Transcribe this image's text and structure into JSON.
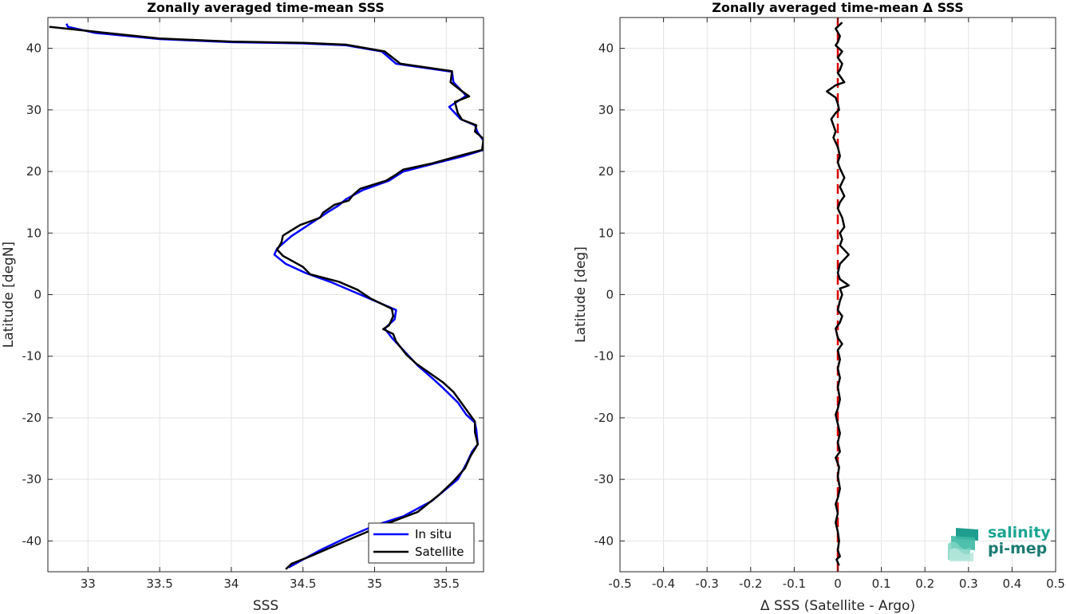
{
  "chart_data": [
    {
      "type": "line",
      "title": "Zonally averaged time-mean SSS",
      "xlabel": "SSS",
      "ylabel": "Latitude [degN]",
      "xlim": [
        32.72,
        35.76
      ],
      "ylim": [
        -45,
        45
      ],
      "xticks": [
        "33",
        "33.5",
        "34",
        "34.5",
        "35",
        "35.5"
      ],
      "yticks": [
        "40",
        "30",
        "20",
        "10",
        "0",
        "-10",
        "-20",
        "-30",
        "-40"
      ],
      "grid": true,
      "legend": {
        "placement": "bottom-right",
        "entries": [
          "In situ",
          "Satellite"
        ]
      },
      "series": [
        {
          "name": "In situ",
          "color": "#0000ff",
          "points": [
            [
              32.85,
              44
            ],
            [
              32.86,
              43.5
            ],
            [
              33.05,
              42.5
            ],
            [
              33.5,
              41.5
            ],
            [
              34.0,
              41.0
            ],
            [
              34.5,
              40.8
            ],
            [
              34.8,
              40.5
            ],
            [
              35.05,
              39.5
            ],
            [
              35.15,
              37.5
            ],
            [
              35.54,
              36.2
            ],
            [
              35.55,
              34.5
            ],
            [
              35.64,
              32.3
            ],
            [
              35.52,
              30.5
            ],
            [
              35.6,
              28.5
            ],
            [
              35.7,
              27.5
            ],
            [
              35.72,
              26.3
            ],
            [
              35.76,
              25.0
            ],
            [
              35.76,
              23.5
            ],
            [
              35.62,
              22.5
            ],
            [
              35.45,
              21.5
            ],
            [
              35.2,
              20.0
            ],
            [
              35.1,
              18.5
            ],
            [
              34.92,
              17.0
            ],
            [
              34.8,
              15.5
            ],
            [
              34.75,
              14.5
            ],
            [
              34.68,
              13.5
            ],
            [
              34.55,
              11.5
            ],
            [
              34.42,
              9.5
            ],
            [
              34.32,
              7.5
            ],
            [
              34.3,
              6.5
            ],
            [
              34.38,
              5.0
            ],
            [
              34.52,
              3.5
            ],
            [
              34.7,
              2.0
            ],
            [
              34.85,
              0.5
            ],
            [
              35.0,
              -1.0
            ],
            [
              35.15,
              -2.5
            ],
            [
              35.14,
              -4.0
            ],
            [
              35.07,
              -5.5
            ],
            [
              35.12,
              -7.0
            ],
            [
              35.2,
              -9.0
            ],
            [
              35.3,
              -11.5
            ],
            [
              35.4,
              -13.5
            ],
            [
              35.47,
              -15.0
            ],
            [
              35.58,
              -17.5
            ],
            [
              35.64,
              -19.5
            ],
            [
              35.7,
              -20.8
            ],
            [
              35.71,
              -22.0
            ],
            [
              35.72,
              -24.3
            ],
            [
              35.68,
              -25.5
            ],
            [
              35.64,
              -27.5
            ],
            [
              35.58,
              -30.0
            ],
            [
              35.4,
              -33.5
            ],
            [
              35.2,
              -36.0
            ],
            [
              35.0,
              -37.5
            ],
            [
              34.8,
              -39.5
            ],
            [
              34.62,
              -41.5
            ],
            [
              34.4,
              -44.3
            ]
          ]
        },
        {
          "name": "Satellite",
          "color": "#000000",
          "points": [
            [
              32.73,
              43.5
            ],
            [
              33.05,
              42.7
            ],
            [
              33.5,
              41.6
            ],
            [
              34.0,
              41.1
            ],
            [
              34.5,
              40.9
            ],
            [
              34.8,
              40.6
            ],
            [
              35.07,
              39.5
            ],
            [
              35.18,
              37.5
            ],
            [
              35.54,
              36.3
            ],
            [
              35.53,
              34.5
            ],
            [
              35.6,
              33.2
            ],
            [
              35.66,
              32.2
            ],
            [
              35.56,
              31.3
            ],
            [
              35.58,
              29.5
            ],
            [
              35.61,
              28.4
            ],
            [
              35.71,
              27.5
            ],
            [
              35.7,
              26.5
            ],
            [
              35.76,
              25.3
            ],
            [
              35.75,
              23.5
            ],
            [
              35.6,
              22.6
            ],
            [
              35.4,
              21.3
            ],
            [
              35.2,
              20.3
            ],
            [
              35.15,
              19.5
            ],
            [
              35.08,
              18.5
            ],
            [
              34.9,
              17.2
            ],
            [
              34.85,
              16.2
            ],
            [
              34.82,
              15.3
            ],
            [
              34.72,
              14.6
            ],
            [
              34.64,
              13.3
            ],
            [
              34.62,
              12.5
            ],
            [
              34.48,
              11.3
            ],
            [
              34.36,
              9.6
            ],
            [
              34.35,
              8.5
            ],
            [
              34.32,
              7.3
            ],
            [
              34.36,
              6.3
            ],
            [
              34.5,
              4.5
            ],
            [
              34.55,
              3.3
            ],
            [
              34.75,
              2.1
            ],
            [
              34.88,
              0.8
            ],
            [
              34.97,
              -0.6
            ],
            [
              35.12,
              -2.3
            ],
            [
              35.13,
              -3.5
            ],
            [
              35.1,
              -5.0
            ],
            [
              35.06,
              -5.6
            ],
            [
              35.13,
              -6.4
            ],
            [
              35.15,
              -7.6
            ],
            [
              35.22,
              -9.7
            ],
            [
              35.29,
              -11.2
            ],
            [
              35.48,
              -14.3
            ],
            [
              35.55,
              -15.8
            ],
            [
              35.6,
              -17.4
            ],
            [
              35.65,
              -19.0
            ],
            [
              35.7,
              -20.6
            ],
            [
              35.7,
              -22.3
            ],
            [
              35.72,
              -24.3
            ],
            [
              35.67,
              -26.2
            ],
            [
              35.63,
              -28.2
            ],
            [
              35.55,
              -30.3
            ],
            [
              35.45,
              -32.5
            ],
            [
              35.3,
              -35.3
            ],
            [
              35.05,
              -37.5
            ],
            [
              34.85,
              -39.5
            ],
            [
              34.7,
              -41.0
            ],
            [
              34.55,
              -42.5
            ],
            [
              34.42,
              -43.7
            ],
            [
              34.38,
              -44.6
            ]
          ]
        }
      ]
    },
    {
      "type": "line",
      "title": "Zonally averaged time-mean Δ SSS",
      "xlabel": "Δ SSS (Satellite - Argo)",
      "ylabel": "Latitude [deg]",
      "xlim": [
        -0.5,
        0.5
      ],
      "ylim": [
        -45,
        45
      ],
      "xticks": [
        "-0.5",
        "-0.4",
        "-0.3",
        "-0.2",
        "-0.1",
        "0",
        "0.1",
        "0.2",
        "0.3",
        "0.4",
        "0.5"
      ],
      "yticks": [
        "40",
        "30",
        "20",
        "10",
        "0",
        "-10",
        "-20",
        "-30",
        "-40"
      ],
      "grid": true,
      "reference_line": {
        "x": 0,
        "color": "#dd0000",
        "style": "dashed"
      },
      "series": [
        {
          "name": "",
          "color": "#000000",
          "points": [
            [
              0.01,
              44.2
            ],
            [
              -0.005,
              43.2
            ],
            [
              0.005,
              42.0
            ],
            [
              0.0,
              41.0
            ],
            [
              -0.005,
              40.5
            ],
            [
              0.01,
              39.5
            ],
            [
              0.0,
              38.5
            ],
            [
              0.01,
              37.5
            ],
            [
              0.005,
              36.5
            ],
            [
              0.0,
              36.0
            ],
            [
              0.015,
              34.5
            ],
            [
              -0.005,
              34.0
            ],
            [
              -0.025,
              33.0
            ],
            [
              -0.005,
              32.0
            ],
            [
              0.0,
              31.0
            ],
            [
              0.003,
              30.0
            ],
            [
              -0.005,
              29.5
            ],
            [
              -0.015,
              28.5
            ],
            [
              -0.01,
              27.5
            ],
            [
              -0.005,
              26.5
            ],
            [
              -0.01,
              25.5
            ],
            [
              0.0,
              24.0
            ],
            [
              0.005,
              22.5
            ],
            [
              0.0,
              21.5
            ],
            [
              0.005,
              20.5
            ],
            [
              0.015,
              19.0
            ],
            [
              0.005,
              17.5
            ],
            [
              0.015,
              16.0
            ],
            [
              0.005,
              15.0
            ],
            [
              0.0,
              14.0
            ],
            [
              0.01,
              12.5
            ],
            [
              0.015,
              11.0
            ],
            [
              0.005,
              10.0
            ],
            [
              0.01,
              9.0
            ],
            [
              0.005,
              8.0
            ],
            [
              0.025,
              6.5
            ],
            [
              0.005,
              5.0
            ],
            [
              0.0,
              3.5
            ],
            [
              0.005,
              2.5
            ],
            [
              0.025,
              1.5
            ],
            [
              0.005,
              1.0
            ],
            [
              0.01,
              0.0
            ],
            [
              0.005,
              -1.0
            ],
            [
              0.0,
              -2.5
            ],
            [
              0.01,
              -3.5
            ],
            [
              0.005,
              -4.5
            ],
            [
              -0.005,
              -5.5
            ],
            [
              0.0,
              -7.0
            ],
            [
              0.01,
              -8.0
            ],
            [
              0.0,
              -9.0
            ],
            [
              0.005,
              -10.5
            ],
            [
              0.0,
              -12.0
            ],
            [
              0.005,
              -13.5
            ],
            [
              0.0,
              -15.0
            ],
            [
              0.005,
              -17.0
            ],
            [
              0.0,
              -18.5
            ],
            [
              -0.005,
              -19.5
            ],
            [
              0.0,
              -21.0
            ],
            [
              0.005,
              -22.5
            ],
            [
              0.0,
              -24.0
            ],
            [
              0.005,
              -25.5
            ],
            [
              -0.005,
              -26.5
            ],
            [
              0.003,
              -28.0
            ],
            [
              0.0,
              -29.5
            ],
            [
              0.005,
              -31.5
            ],
            [
              0.0,
              -33.0
            ],
            [
              -0.005,
              -34.0
            ],
            [
              0.0,
              -35.5
            ],
            [
              -0.005,
              -37.0
            ],
            [
              0.0,
              -38.5
            ],
            [
              0.003,
              -40.0
            ],
            [
              0.0,
              -41.5
            ],
            [
              0.005,
              -42.5
            ],
            [
              -0.003,
              -43.0
            ],
            [
              0.003,
              -44.0
            ]
          ]
        }
      ]
    }
  ],
  "legend": {
    "in_situ": "In situ",
    "satellite": "Satellite"
  },
  "logo": {
    "line1": "salinity",
    "line2": "pi-mep"
  }
}
